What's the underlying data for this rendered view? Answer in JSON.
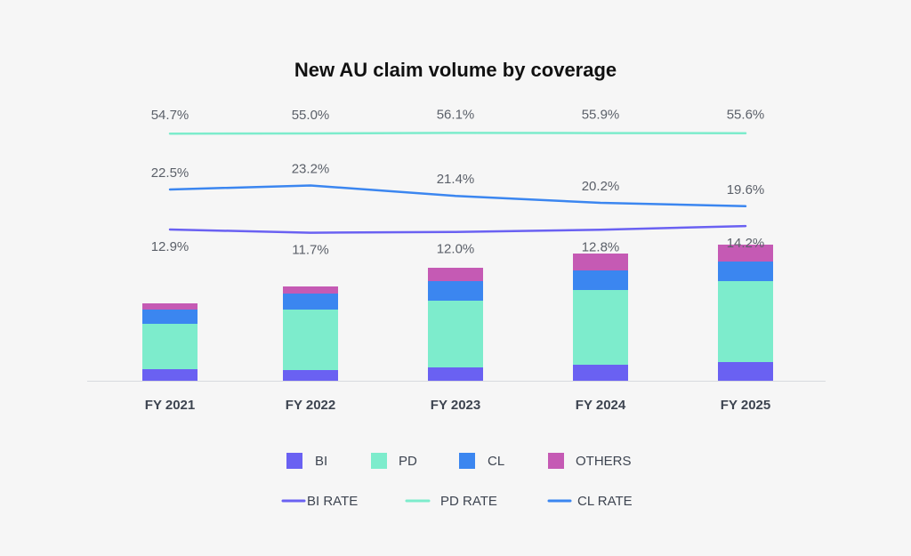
{
  "colors": {
    "bi": "#6a61f2",
    "pd": "#7deccc",
    "cl": "#3b86f0",
    "others": "#c55ab4",
    "bi_rate": "#6a61f2",
    "pd_rate": "#7deccc",
    "cl_rate": "#3b86f0",
    "axis": "#d8dadf"
  },
  "chart_data": {
    "type": "bar",
    "stacked": true,
    "title": "New AU claim volume by coverage",
    "categories": [
      "FY 2021",
      "FY 2022",
      "FY 2023",
      "FY 2024",
      "FY 2025"
    ],
    "series": [
      {
        "key": "bi",
        "name": "BI",
        "values": [
          13,
          12,
          15,
          18,
          21
        ]
      },
      {
        "key": "pd",
        "name": "PD",
        "values": [
          51,
          68,
          75,
          84,
          91
        ]
      },
      {
        "key": "cl",
        "name": "CL",
        "values": [
          16,
          18,
          22,
          22,
          22
        ]
      },
      {
        "key": "others",
        "name": "OTHERS",
        "values": [
          7,
          8,
          15,
          19,
          19
        ]
      }
    ],
    "ylim": [
      0,
      160
    ],
    "rates": [
      {
        "key": "pd_rate",
        "name": "PD RATE",
        "values": [
          54.7,
          55.0,
          56.1,
          55.9,
          55.6
        ],
        "labels": [
          "54.7%",
          "55.0%",
          "56.1%",
          "55.9%",
          "55.6%"
        ]
      },
      {
        "key": "cl_rate",
        "name": "CL RATE",
        "values": [
          22.5,
          23.2,
          21.4,
          20.2,
          19.6
        ],
        "labels": [
          "22.5%",
          "23.2%",
          "21.4%",
          "20.2%",
          "19.6%"
        ]
      },
      {
        "key": "bi_rate",
        "name": "BI RATE",
        "values": [
          12.9,
          11.7,
          12.0,
          12.8,
          14.2
        ],
        "labels": [
          "12.9%",
          "11.7%",
          "12.0%",
          "12.8%",
          "14.2%"
        ]
      }
    ],
    "legend": {
      "bars": [
        "BI",
        "PD",
        "CL",
        "OTHERS"
      ],
      "lines": [
        "BI RATE",
        "PD RATE",
        "CL RATE"
      ]
    }
  }
}
